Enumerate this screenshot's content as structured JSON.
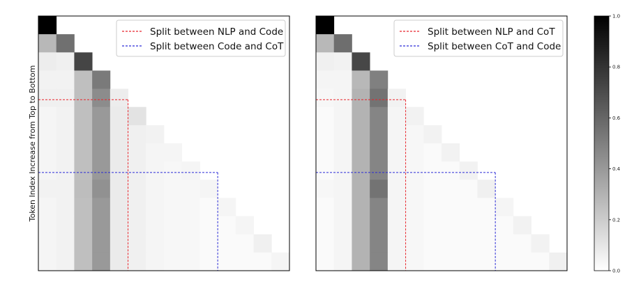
{
  "chart_data": [
    {
      "type": "heatmap",
      "title": "",
      "xlabel": "",
      "ylabel": "Token Index Increase from Top to Bottom",
      "size": 14,
      "col_values": [
        0.04,
        0.05,
        0.25,
        0.4,
        0.08,
        0.06,
        0.04,
        0.03,
        0.03,
        0.02,
        0.02,
        0.02,
        0.02,
        0.02
      ],
      "diag_values": [
        1.0,
        0.56,
        0.73,
        0.52,
        0.07,
        0.11,
        0.05,
        0.04,
        0.04,
        0.04,
        0.04,
        0.04,
        0.06,
        0.04
      ],
      "row_overrides": [
        {
          "row": 1,
          "values": [
            0.28
          ]
        },
        {
          "row": 2,
          "values": [
            0.07,
            0.06
          ]
        },
        {
          "row": 3,
          "values": [
            0.05,
            0.05,
            0.25
          ]
        },
        {
          "row": 4,
          "values": [
            0.06,
            0.06,
            0.25,
            0.45
          ]
        },
        {
          "row": 9,
          "values": [
            0.05,
            0.05,
            0.26,
            0.43
          ]
        }
      ],
      "splits": [
        {
          "name": "Split between NLP and Code",
          "color": "#e8232a",
          "row": 4.6,
          "col": 5
        },
        {
          "name": "Split between Code and CoT",
          "color": "#2a2ad6",
          "row": 8.6,
          "col": 10
        }
      ],
      "legend": {
        "placement": "top-right"
      }
    },
    {
      "type": "heatmap",
      "title": "",
      "xlabel": "",
      "ylabel": "",
      "size": 14,
      "col_values": [
        0.02,
        0.04,
        0.3,
        0.48,
        0.04,
        0.03,
        0.02,
        0.02,
        0.02,
        0.02,
        0.02,
        0.02,
        0.02,
        0.02
      ],
      "diag_values": [
        1.0,
        0.57,
        0.72,
        0.5,
        0.05,
        0.05,
        0.05,
        0.05,
        0.05,
        0.06,
        0.04,
        0.05,
        0.05,
        0.06
      ],
      "row_overrides": [
        {
          "row": 1,
          "values": [
            0.28
          ]
        },
        {
          "row": 2,
          "values": [
            0.06,
            0.05
          ]
        },
        {
          "row": 3,
          "values": [
            0.04,
            0.04,
            0.28
          ]
        },
        {
          "row": 4,
          "values": [
            0.03,
            0.04,
            0.3,
            0.55
          ]
        },
        {
          "row": 9,
          "values": [
            0.03,
            0.04,
            0.3,
            0.55
          ]
        }
      ],
      "splits": [
        {
          "name": "Split between NLP and CoT",
          "color": "#e8232a",
          "row": 4.6,
          "col": 5
        },
        {
          "name": "Split between CoT and Code",
          "color": "#2a2ad6",
          "row": 8.6,
          "col": 10
        }
      ],
      "legend": {
        "placement": "top-right"
      }
    }
  ],
  "colorbar": {
    "min": 0.0,
    "max": 1.0,
    "ticks": [
      "0.0",
      "0.2",
      "0.4",
      "0.6",
      "0.8",
      "1.0"
    ]
  }
}
